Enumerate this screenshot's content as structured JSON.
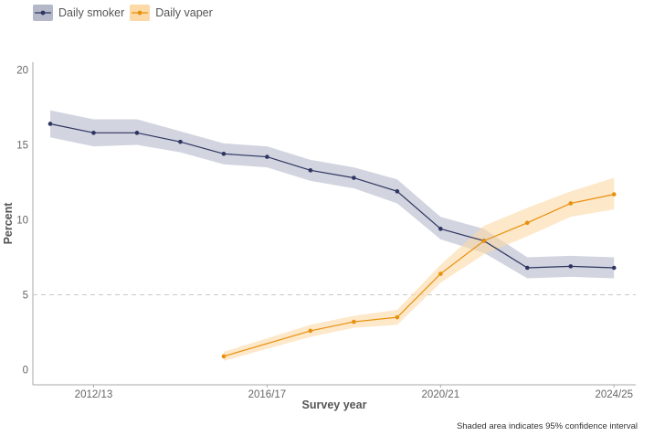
{
  "chart_data": {
    "type": "line",
    "xlabel": "Survey year",
    "ylabel": "Percent",
    "ylim": [
      -1,
      21
    ],
    "yticks": [
      0,
      5,
      10,
      15,
      20
    ],
    "xlim": [
      0.6,
      14.5
    ],
    "xticks": [
      {
        "x": 2,
        "label": "2012/13"
      },
      {
        "x": 6,
        "label": "2016/17"
      },
      {
        "x": 10,
        "label": "2020/21"
      },
      {
        "x": 14,
        "label": "2024/25"
      }
    ],
    "reference_line": {
      "y": 5,
      "style": "dashed"
    },
    "legend_position": "top-left",
    "grid": false,
    "series": [
      {
        "name": "Daily smoker",
        "color": "#2e3560",
        "band_color": "#b4b8c9",
        "x": [
          1,
          2,
          3,
          4,
          5,
          6,
          7,
          8,
          9,
          10,
          11,
          12,
          13,
          14
        ],
        "values": [
          16.4,
          15.8,
          15.8,
          15.2,
          14.4,
          14.2,
          13.3,
          12.8,
          11.9,
          9.4,
          8.6,
          6.8,
          6.9,
          6.8
        ],
        "lower": [
          15.5,
          14.9,
          15.0,
          14.5,
          13.7,
          13.5,
          12.6,
          12.1,
          11.1,
          8.7,
          7.8,
          6.1,
          6.2,
          6.1
        ],
        "upper": [
          17.3,
          16.7,
          16.7,
          15.9,
          15.1,
          14.9,
          14.0,
          13.5,
          12.7,
          10.2,
          9.4,
          7.5,
          7.6,
          7.5
        ]
      },
      {
        "name": "Daily vaper",
        "color": "#e8900c",
        "band_color": "#fcd9a6",
        "x": [
          5,
          7,
          8,
          9,
          10,
          11,
          12,
          13,
          14
        ],
        "values": [
          0.9,
          2.6,
          3.2,
          3.5,
          6.4,
          8.6,
          9.8,
          11.1,
          11.7
        ],
        "lower": [
          0.6,
          2.2,
          2.8,
          3.0,
          5.8,
          7.7,
          8.9,
          10.2,
          10.7
        ],
        "upper": [
          1.2,
          3.0,
          3.6,
          4.0,
          7.0,
          9.6,
          10.8,
          11.9,
          12.8
        ]
      }
    ]
  },
  "caption": "Shaded area indicates 95% confidence interval"
}
